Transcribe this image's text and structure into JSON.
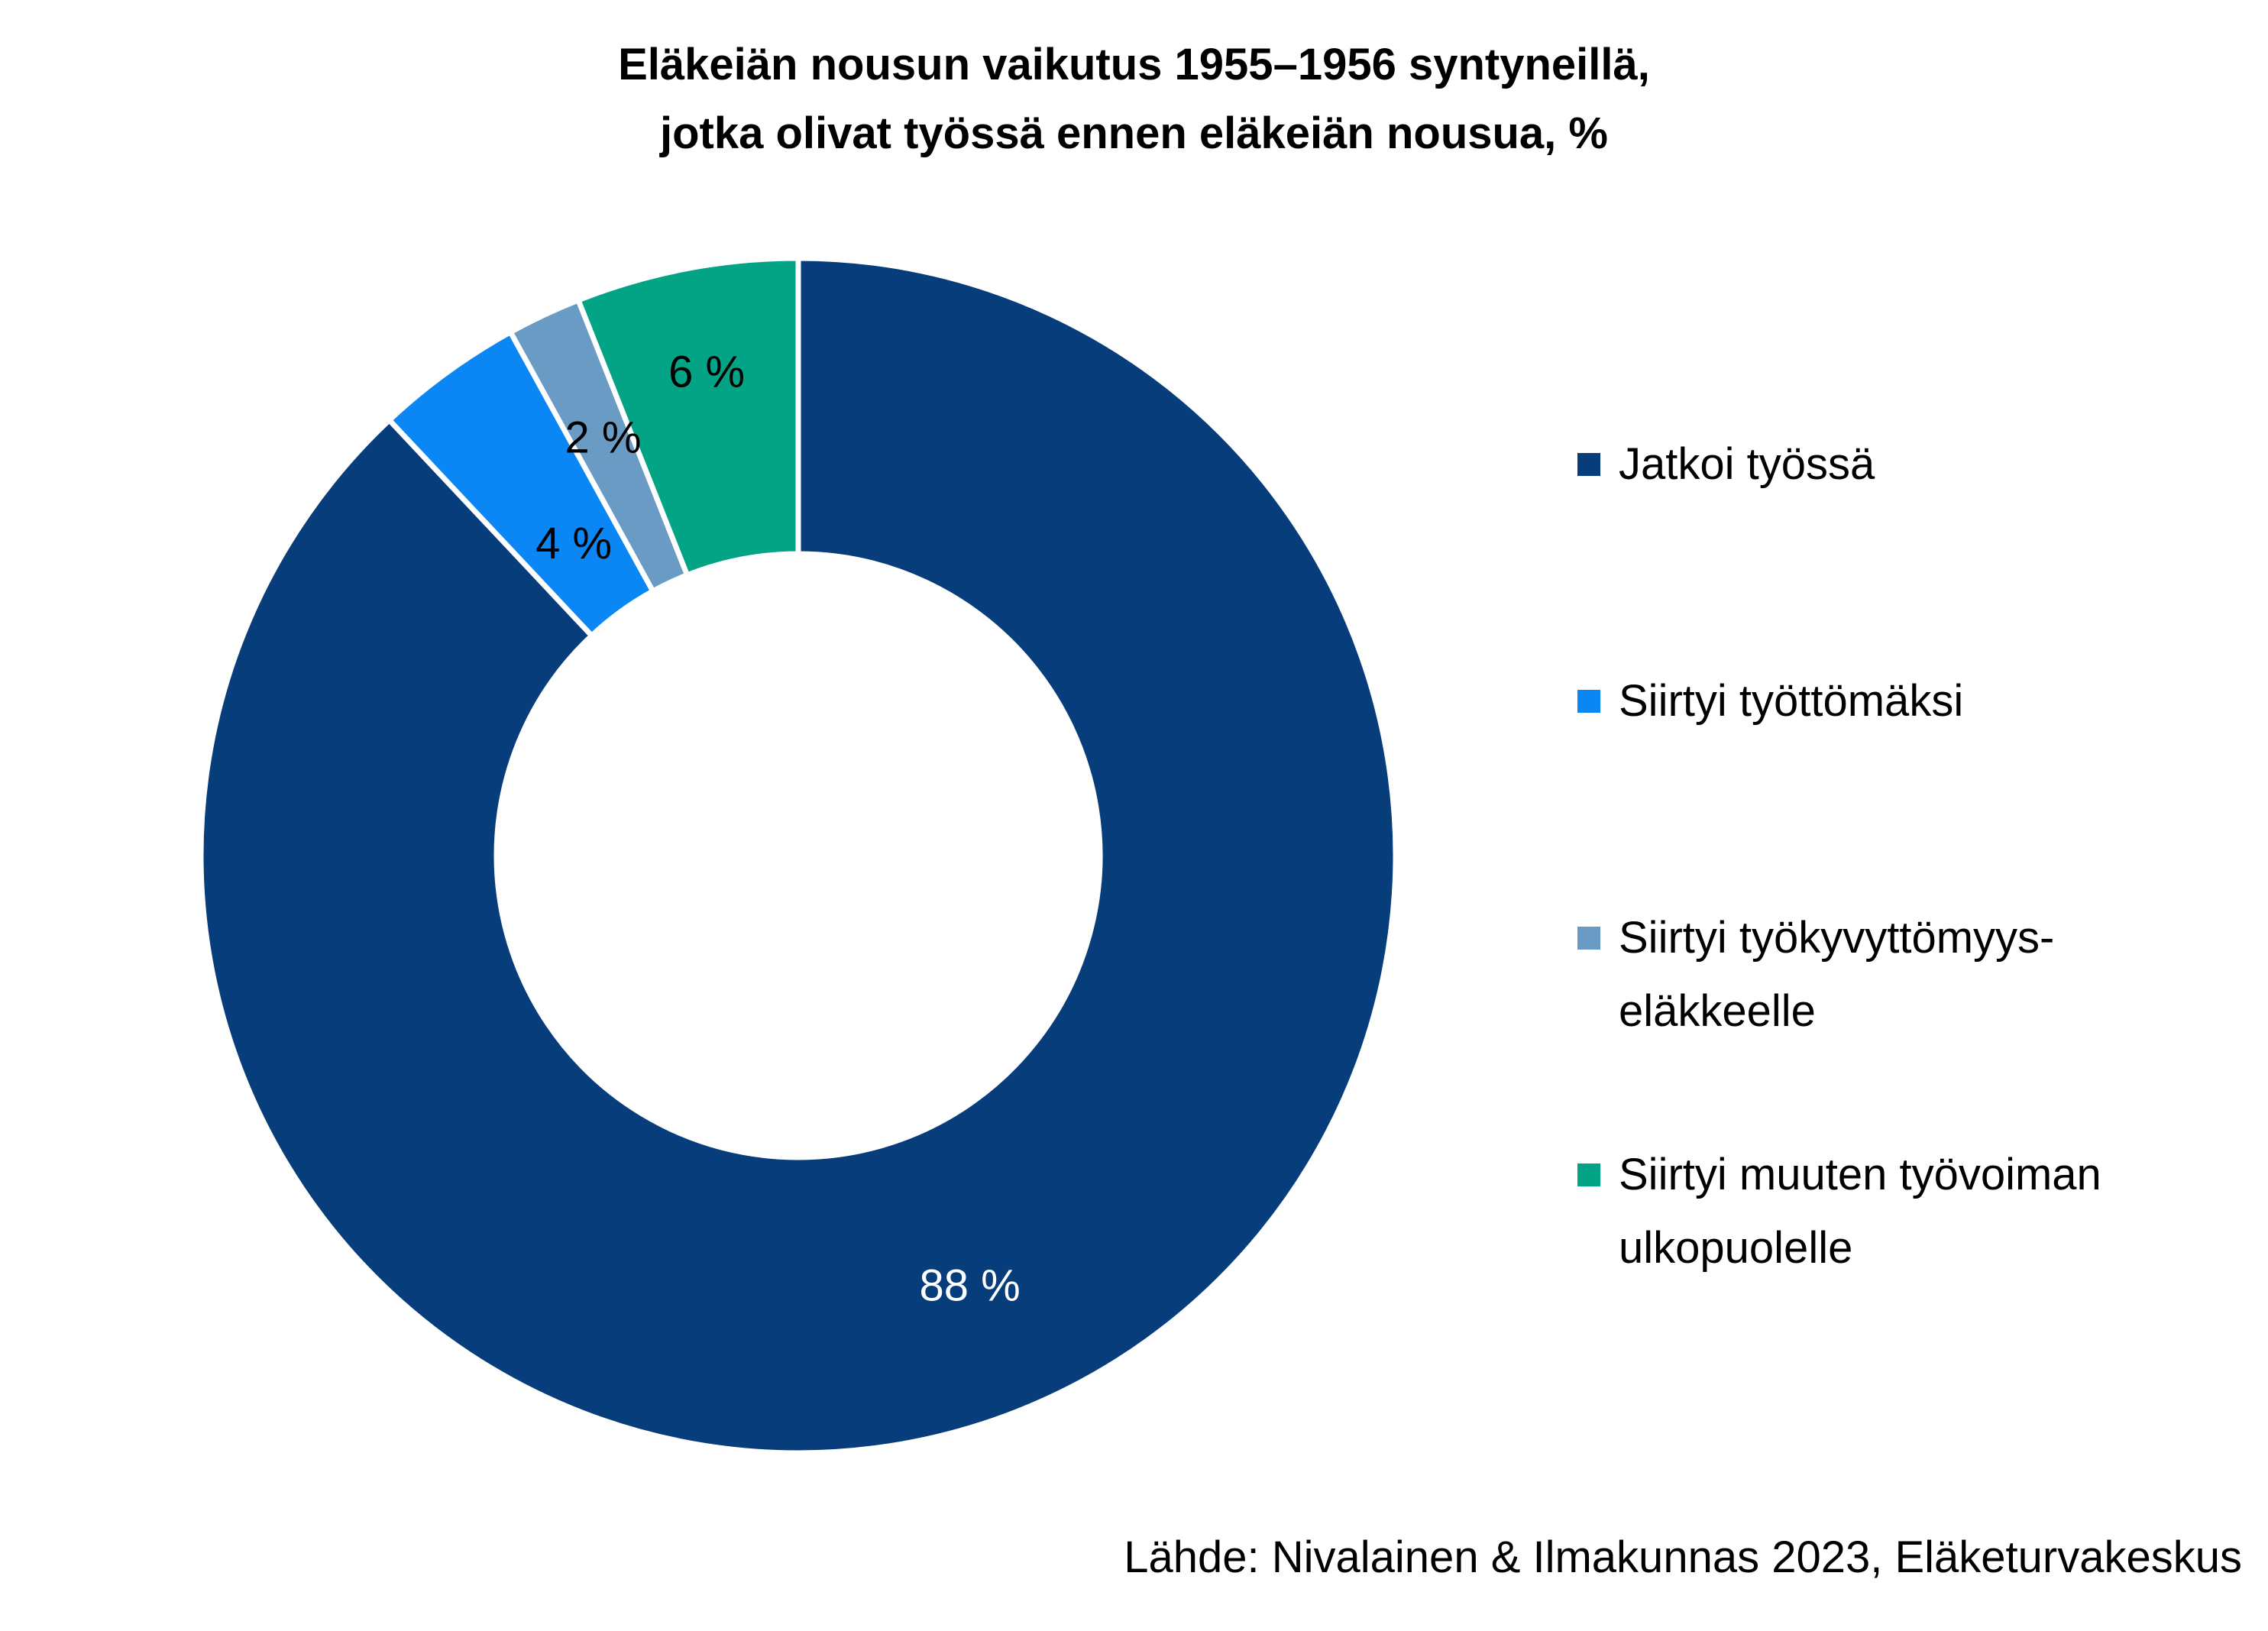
{
  "chart_data": {
    "type": "pie",
    "title": "Eläkeiän nousun vaikutus 1955–1956 syntyneillä, jotka olivat työssä ennen eläkeiän nousua, %",
    "title_lines": [
      "Eläkeiän nousun vaikutus 1955–1956 syntyneillä,",
      "jotka olivat työssä ennen eläkeiän nousua, %"
    ],
    "donut": true,
    "legend_position": "right",
    "categories": [
      "Jatkoi työssä",
      "Siirtyi työttömäksi",
      "Siirtyi työkyvyttömyys-eläkkeelle",
      "Siirtyi muuten työvoiman ulkopuolelle"
    ],
    "legend_labels": [
      "Jatkoi työssä",
      "Siirtyi työttömäksi",
      "Siirtyi työkyvyttömyys-\neläkkeelle",
      "Siirtyi muuten työvoiman\nulkopuolelle"
    ],
    "values": [
      88,
      4,
      2,
      6
    ],
    "data_labels": [
      "88 %",
      "4 %",
      "2 %",
      "6 %"
    ],
    "colors": [
      "#063d7a",
      "#0b87f5",
      "#6a9bc5",
      "#03a386"
    ],
    "label_colors": [
      "#ffffff",
      "#000000",
      "#000000",
      "#000000"
    ],
    "source": "Lähde: Nivalainen & Ilmakunnas 2023, Eläketurvakeskus"
  }
}
